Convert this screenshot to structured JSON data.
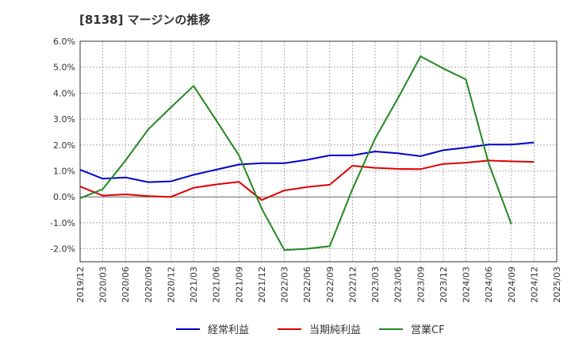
{
  "title": "[8138]  マージンの推移",
  "chart_data": {
    "type": "line",
    "x": [
      "2019/12",
      "2020/03",
      "2020/06",
      "2020/09",
      "2020/12",
      "2021/03",
      "2021/06",
      "2021/09",
      "2021/12",
      "2022/03",
      "2022/06",
      "2022/09",
      "2022/12",
      "2023/03",
      "2023/06",
      "2023/09",
      "2023/12",
      "2024/03",
      "2024/06",
      "2024/09",
      "2024/12",
      "2025/03"
    ],
    "ylim": [
      -2.5,
      6.0
    ],
    "yticks": [
      6.0,
      5.0,
      4.0,
      3.0,
      2.0,
      1.0,
      0.0,
      -1.0,
      -2.0
    ],
    "ytick_labels": [
      "6.0%",
      "5.0%",
      "4.0%",
      "3.0%",
      "2.0%",
      "1.0%",
      "0.0%",
      "-1.0%",
      "-2.0%"
    ],
    "grid": true,
    "legend_position": "bottom",
    "series": [
      {
        "name": "経常利益",
        "color": "#0000cc",
        "values": [
          1.05,
          0.7,
          0.75,
          0.57,
          0.6,
          0.85,
          1.05,
          1.25,
          1.3,
          1.3,
          1.43,
          1.6,
          1.6,
          1.75,
          1.68,
          1.57,
          1.8,
          1.9,
          2.02,
          2.02,
          2.1,
          null
        ]
      },
      {
        "name": "当期純利益",
        "color": "#dd0000",
        "values": [
          0.4,
          0.05,
          0.1,
          0.03,
          0.0,
          0.35,
          0.48,
          0.58,
          -0.12,
          0.25,
          0.38,
          0.47,
          1.2,
          1.12,
          1.08,
          1.07,
          1.27,
          1.32,
          1.4,
          1.37,
          1.35,
          null
        ]
      },
      {
        "name": "営業CF",
        "color": "#228822",
        "values": [
          -0.05,
          0.3,
          1.4,
          2.6,
          3.45,
          4.28,
          2.95,
          1.6,
          -0.45,
          -2.05,
          -2.0,
          -1.9,
          0.3,
          2.25,
          3.8,
          5.42,
          4.95,
          4.53,
          1.3,
          -1.05,
          null,
          null
        ]
      }
    ]
  }
}
